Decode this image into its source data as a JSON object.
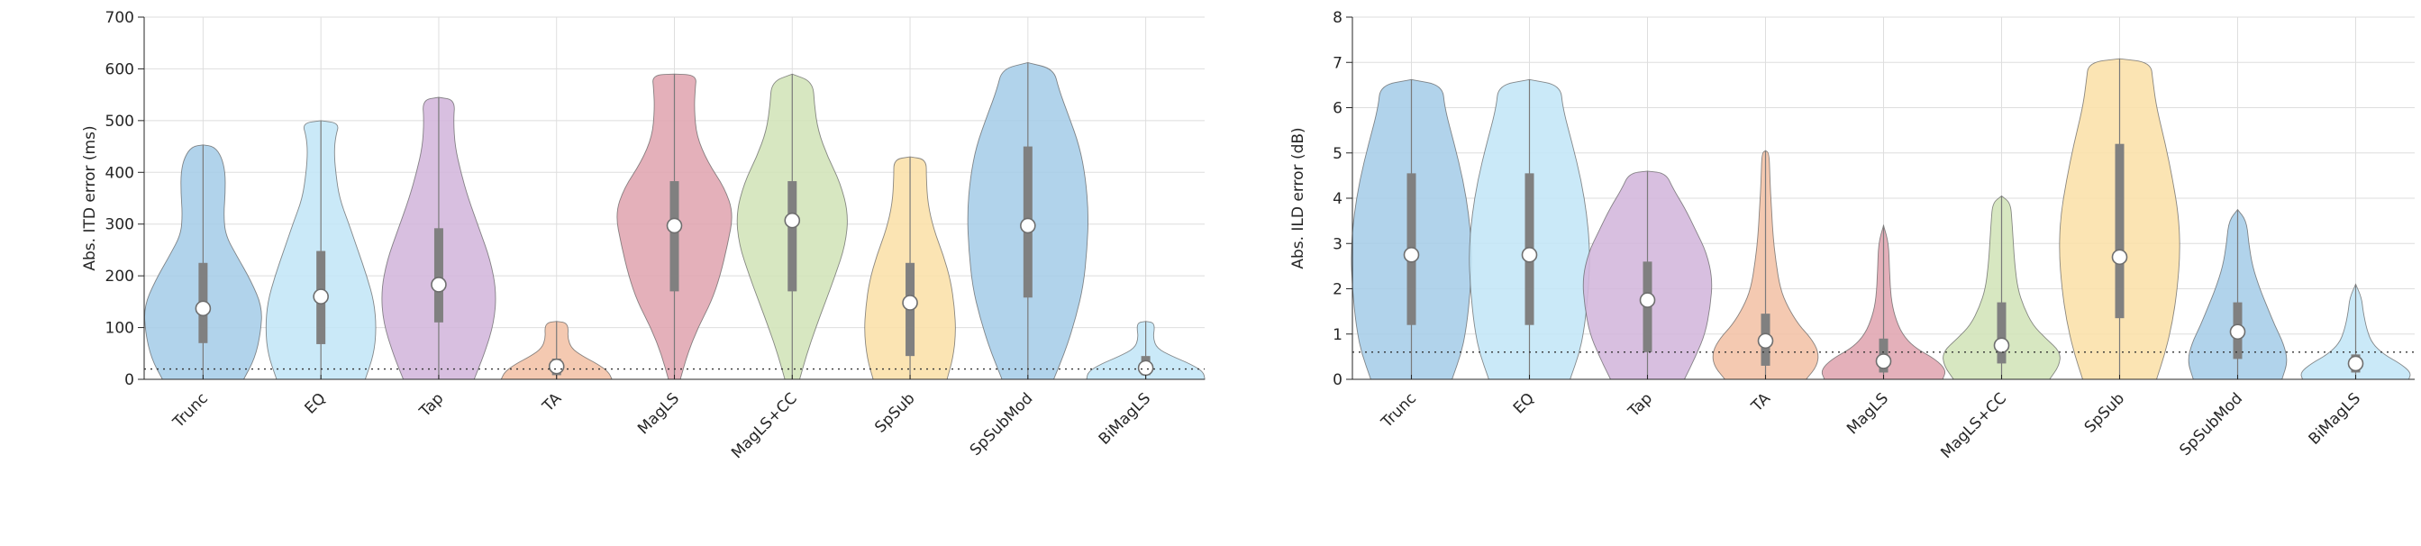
{
  "chart_data": [
    {
      "type": "violin",
      "ylabel": "Abs. ITD error (ms)",
      "xlabel": "",
      "ylim": [
        0,
        700
      ],
      "yticks": [
        0,
        100,
        200,
        300,
        400,
        500,
        600,
        700
      ],
      "grid": true,
      "reference_line": 20,
      "categories": [
        "Trunc",
        "EQ",
        "Tap",
        "TA",
        "MagLS",
        "MagLS+CC",
        "SpSub",
        "SpSubMod",
        "BiMagLS"
      ],
      "colors": [
        "#a6cde8",
        "#c3e6f7",
        "#d3b6dc",
        "#f2c1a6",
        "#e0a5b0",
        "#d2e4b8",
        "#fbe0a9",
        "#a6cde8",
        "#c3e6f7"
      ],
      "violins": [
        {
          "name": "Trunc",
          "median": 137,
          "q1": 70,
          "q3": 225,
          "max": 453,
          "profile": [
            [
              0,
              0.55
            ],
            [
              40,
              0.7
            ],
            [
              90,
              0.78
            ],
            [
              140,
              0.8
            ],
            [
              190,
              0.65
            ],
            [
              240,
              0.45
            ],
            [
              280,
              0.3
            ],
            [
              320,
              0.28
            ],
            [
              360,
              0.3
            ],
            [
              400,
              0.3
            ],
            [
              430,
              0.25
            ],
            [
              450,
              0.15
            ],
            [
              453,
              0
            ]
          ]
        },
        {
          "name": "EQ",
          "median": 160,
          "q1": 68,
          "q3": 248,
          "max": 500,
          "profile": [
            [
              0,
              0.6
            ],
            [
              50,
              0.72
            ],
            [
              100,
              0.75
            ],
            [
              150,
              0.72
            ],
            [
              200,
              0.62
            ],
            [
              250,
              0.5
            ],
            [
              300,
              0.38
            ],
            [
              350,
              0.25
            ],
            [
              400,
              0.2
            ],
            [
              440,
              0.18
            ],
            [
              470,
              0.2
            ],
            [
              495,
              0.25
            ],
            [
              500,
              0
            ]
          ]
        },
        {
          "name": "Tap",
          "median": 183,
          "q1": 110,
          "q3": 292,
          "max": 545,
          "profile": [
            [
              0,
              0.48
            ],
            [
              50,
              0.62
            ],
            [
              110,
              0.75
            ],
            [
              170,
              0.78
            ],
            [
              230,
              0.7
            ],
            [
              290,
              0.55
            ],
            [
              350,
              0.4
            ],
            [
              400,
              0.3
            ],
            [
              450,
              0.22
            ],
            [
              500,
              0.2
            ],
            [
              540,
              0.22
            ],
            [
              545,
              0
            ]
          ]
        },
        {
          "name": "TA",
          "median": 25,
          "q1": 8,
          "q3": 40,
          "max": 112,
          "profile": [
            [
              0,
              0.75
            ],
            [
              15,
              0.7
            ],
            [
              30,
              0.55
            ],
            [
              45,
              0.35
            ],
            [
              60,
              0.2
            ],
            [
              80,
              0.15
            ],
            [
              100,
              0.16
            ],
            [
              110,
              0.12
            ],
            [
              112,
              0
            ]
          ]
        },
        {
          "name": "MagLS",
          "median": 297,
          "q1": 170,
          "q3": 383,
          "max": 590,
          "profile": [
            [
              0,
              0.08
            ],
            [
              50,
              0.18
            ],
            [
              100,
              0.32
            ],
            [
              150,
              0.5
            ],
            [
              200,
              0.62
            ],
            [
              260,
              0.72
            ],
            [
              320,
              0.8
            ],
            [
              370,
              0.68
            ],
            [
              420,
              0.45
            ],
            [
              470,
              0.3
            ],
            [
              520,
              0.27
            ],
            [
              560,
              0.28
            ],
            [
              588,
              0.3
            ],
            [
              590,
              0
            ]
          ]
        },
        {
          "name": "MagLS+CC",
          "median": 307,
          "q1": 170,
          "q3": 383,
          "max": 590,
          "profile": [
            [
              0,
              0.1
            ],
            [
              50,
              0.2
            ],
            [
              100,
              0.32
            ],
            [
              150,
              0.45
            ],
            [
              200,
              0.58
            ],
            [
              260,
              0.72
            ],
            [
              320,
              0.76
            ],
            [
              380,
              0.65
            ],
            [
              430,
              0.48
            ],
            [
              480,
              0.35
            ],
            [
              530,
              0.3
            ],
            [
              575,
              0.28
            ],
            [
              590,
              0
            ]
          ]
        },
        {
          "name": "SpSub",
          "median": 148,
          "q1": 45,
          "q3": 225,
          "max": 430,
          "profile": [
            [
              0,
              0.5
            ],
            [
              40,
              0.58
            ],
            [
              90,
              0.62
            ],
            [
              140,
              0.6
            ],
            [
              190,
              0.55
            ],
            [
              240,
              0.45
            ],
            [
              290,
              0.32
            ],
            [
              340,
              0.24
            ],
            [
              390,
              0.22
            ],
            [
              425,
              0.22
            ],
            [
              430,
              0
            ]
          ]
        },
        {
          "name": "SpSubMod",
          "median": 297,
          "q1": 158,
          "q3": 450,
          "max": 612,
          "profile": [
            [
              0,
              0.35
            ],
            [
              60,
              0.52
            ],
            [
              120,
              0.65
            ],
            [
              180,
              0.75
            ],
            [
              250,
              0.8
            ],
            [
              320,
              0.82
            ],
            [
              390,
              0.78
            ],
            [
              450,
              0.7
            ],
            [
              510,
              0.55
            ],
            [
              560,
              0.42
            ],
            [
              600,
              0.35
            ],
            [
              612,
              0
            ]
          ]
        },
        {
          "name": "BiMagLS",
          "median": 22,
          "q1": 8,
          "q3": 45,
          "max": 112,
          "profile": [
            [
              0,
              0.8
            ],
            [
              15,
              0.78
            ],
            [
              30,
              0.6
            ],
            [
              45,
              0.35
            ],
            [
              60,
              0.15
            ],
            [
              80,
              0.1
            ],
            [
              100,
              0.12
            ],
            [
              110,
              0.1
            ],
            [
              112,
              0
            ]
          ]
        }
      ]
    },
    {
      "type": "violin",
      "ylabel": "Abs. ILD error (dB)",
      "xlabel": "",
      "ylim": [
        0,
        8
      ],
      "yticks": [
        0,
        1,
        2,
        3,
        4,
        5,
        6,
        7,
        8
      ],
      "grid": true,
      "reference_line": 0.6,
      "categories": [
        "Trunc",
        "EQ",
        "Tap",
        "TA",
        "MagLS",
        "MagLS+CC",
        "SpSub",
        "SpSubMod",
        "BiMagLS"
      ],
      "colors": [
        "#a6cde8",
        "#c3e6f7",
        "#d3b6dc",
        "#f2c1a6",
        "#e0a5b0",
        "#d2e4b8",
        "#fbe0a9",
        "#a6cde8",
        "#c3e6f7"
      ],
      "violins": [
        {
          "name": "Trunc",
          "median": 2.75,
          "q1": 1.2,
          "q3": 4.55,
          "max": 6.62,
          "profile": [
            [
              0,
              0.55
            ],
            [
              0.6,
              0.68
            ],
            [
              1.2,
              0.75
            ],
            [
              2,
              0.8
            ],
            [
              2.8,
              0.82
            ],
            [
              3.6,
              0.78
            ],
            [
              4.4,
              0.7
            ],
            [
              5.2,
              0.58
            ],
            [
              6,
              0.45
            ],
            [
              6.5,
              0.42
            ],
            [
              6.62,
              0
            ]
          ]
        },
        {
          "name": "EQ",
          "median": 2.75,
          "q1": 1.2,
          "q3": 4.55,
          "max": 6.62,
          "profile": [
            [
              0,
              0.55
            ],
            [
              0.6,
              0.68
            ],
            [
              1.2,
              0.75
            ],
            [
              2,
              0.8
            ],
            [
              2.8,
              0.82
            ],
            [
              3.6,
              0.78
            ],
            [
              4.4,
              0.7
            ],
            [
              5.2,
              0.58
            ],
            [
              6,
              0.45
            ],
            [
              6.5,
              0.42
            ],
            [
              6.62,
              0
            ]
          ]
        },
        {
          "name": "Tap",
          "median": 1.75,
          "q1": 0.6,
          "q3": 2.6,
          "max": 4.6,
          "profile": [
            [
              0,
              0.5
            ],
            [
              0.5,
              0.65
            ],
            [
              1,
              0.78
            ],
            [
              1.6,
              0.85
            ],
            [
              2.2,
              0.88
            ],
            [
              2.8,
              0.8
            ],
            [
              3.3,
              0.65
            ],
            [
              3.8,
              0.5
            ],
            [
              4.2,
              0.35
            ],
            [
              4.55,
              0.25
            ],
            [
              4.6,
              0
            ]
          ]
        },
        {
          "name": "TA",
          "median": 0.85,
          "q1": 0.3,
          "q3": 1.45,
          "max": 5.05,
          "profile": [
            [
              0,
              0.55
            ],
            [
              0.3,
              0.7
            ],
            [
              0.6,
              0.72
            ],
            [
              0.9,
              0.62
            ],
            [
              1.2,
              0.45
            ],
            [
              1.6,
              0.3
            ],
            [
              2,
              0.2
            ],
            [
              2.6,
              0.14
            ],
            [
              3.2,
              0.1
            ],
            [
              3.8,
              0.08
            ],
            [
              4.4,
              0.06
            ],
            [
              5,
              0.05
            ],
            [
              5.05,
              0
            ]
          ]
        },
        {
          "name": "MagLS",
          "median": 0.4,
          "q1": 0.15,
          "q3": 0.9,
          "max": 3.4,
          "profile": [
            [
              0,
              0.8
            ],
            [
              0.2,
              0.85
            ],
            [
              0.45,
              0.7
            ],
            [
              0.7,
              0.42
            ],
            [
              1,
              0.25
            ],
            [
              1.4,
              0.15
            ],
            [
              1.8,
              0.1
            ],
            [
              2.4,
              0.08
            ],
            [
              3,
              0.07
            ],
            [
              3.4,
              0
            ]
          ]
        },
        {
          "name": "MagLS+CC",
          "median": 0.75,
          "q1": 0.35,
          "q3": 1.7,
          "max": 4.05,
          "profile": [
            [
              0,
              0.65
            ],
            [
              0.3,
              0.78
            ],
            [
              0.6,
              0.8
            ],
            [
              0.9,
              0.6
            ],
            [
              1.2,
              0.42
            ],
            [
              1.6,
              0.3
            ],
            [
              2,
              0.22
            ],
            [
              2.5,
              0.18
            ],
            [
              3,
              0.16
            ],
            [
              3.5,
              0.14
            ],
            [
              3.9,
              0.12
            ],
            [
              4.05,
              0
            ]
          ]
        },
        {
          "name": "SpSub",
          "median": 2.7,
          "q1": 1.35,
          "q3": 5.2,
          "max": 7.08,
          "profile": [
            [
              0,
              0.5
            ],
            [
              0.6,
              0.62
            ],
            [
              1.3,
              0.72
            ],
            [
              2,
              0.78
            ],
            [
              2.8,
              0.82
            ],
            [
              3.6,
              0.8
            ],
            [
              4.4,
              0.72
            ],
            [
              5.2,
              0.62
            ],
            [
              6,
              0.5
            ],
            [
              6.6,
              0.45
            ],
            [
              7,
              0.42
            ],
            [
              7.08,
              0
            ]
          ]
        },
        {
          "name": "SpSubMod",
          "median": 1.05,
          "q1": 0.45,
          "q3": 1.7,
          "max": 3.75,
          "profile": [
            [
              0,
              0.6
            ],
            [
              0.4,
              0.68
            ],
            [
              0.8,
              0.62
            ],
            [
              1.2,
              0.5
            ],
            [
              1.6,
              0.4
            ],
            [
              2,
              0.3
            ],
            [
              2.5,
              0.2
            ],
            [
              3,
              0.15
            ],
            [
              3.5,
              0.12
            ],
            [
              3.75,
              0
            ]
          ]
        },
        {
          "name": "BiMagLS",
          "median": 0.35,
          "q1": 0.15,
          "q3": 0.55,
          "max": 2.1,
          "profile": [
            [
              0,
              0.72
            ],
            [
              0.15,
              0.75
            ],
            [
              0.35,
              0.6
            ],
            [
              0.55,
              0.38
            ],
            [
              0.8,
              0.22
            ],
            [
              1.1,
              0.15
            ],
            [
              1.5,
              0.1
            ],
            [
              1.8,
              0.08
            ],
            [
              2.1,
              0
            ]
          ]
        }
      ]
    }
  ]
}
